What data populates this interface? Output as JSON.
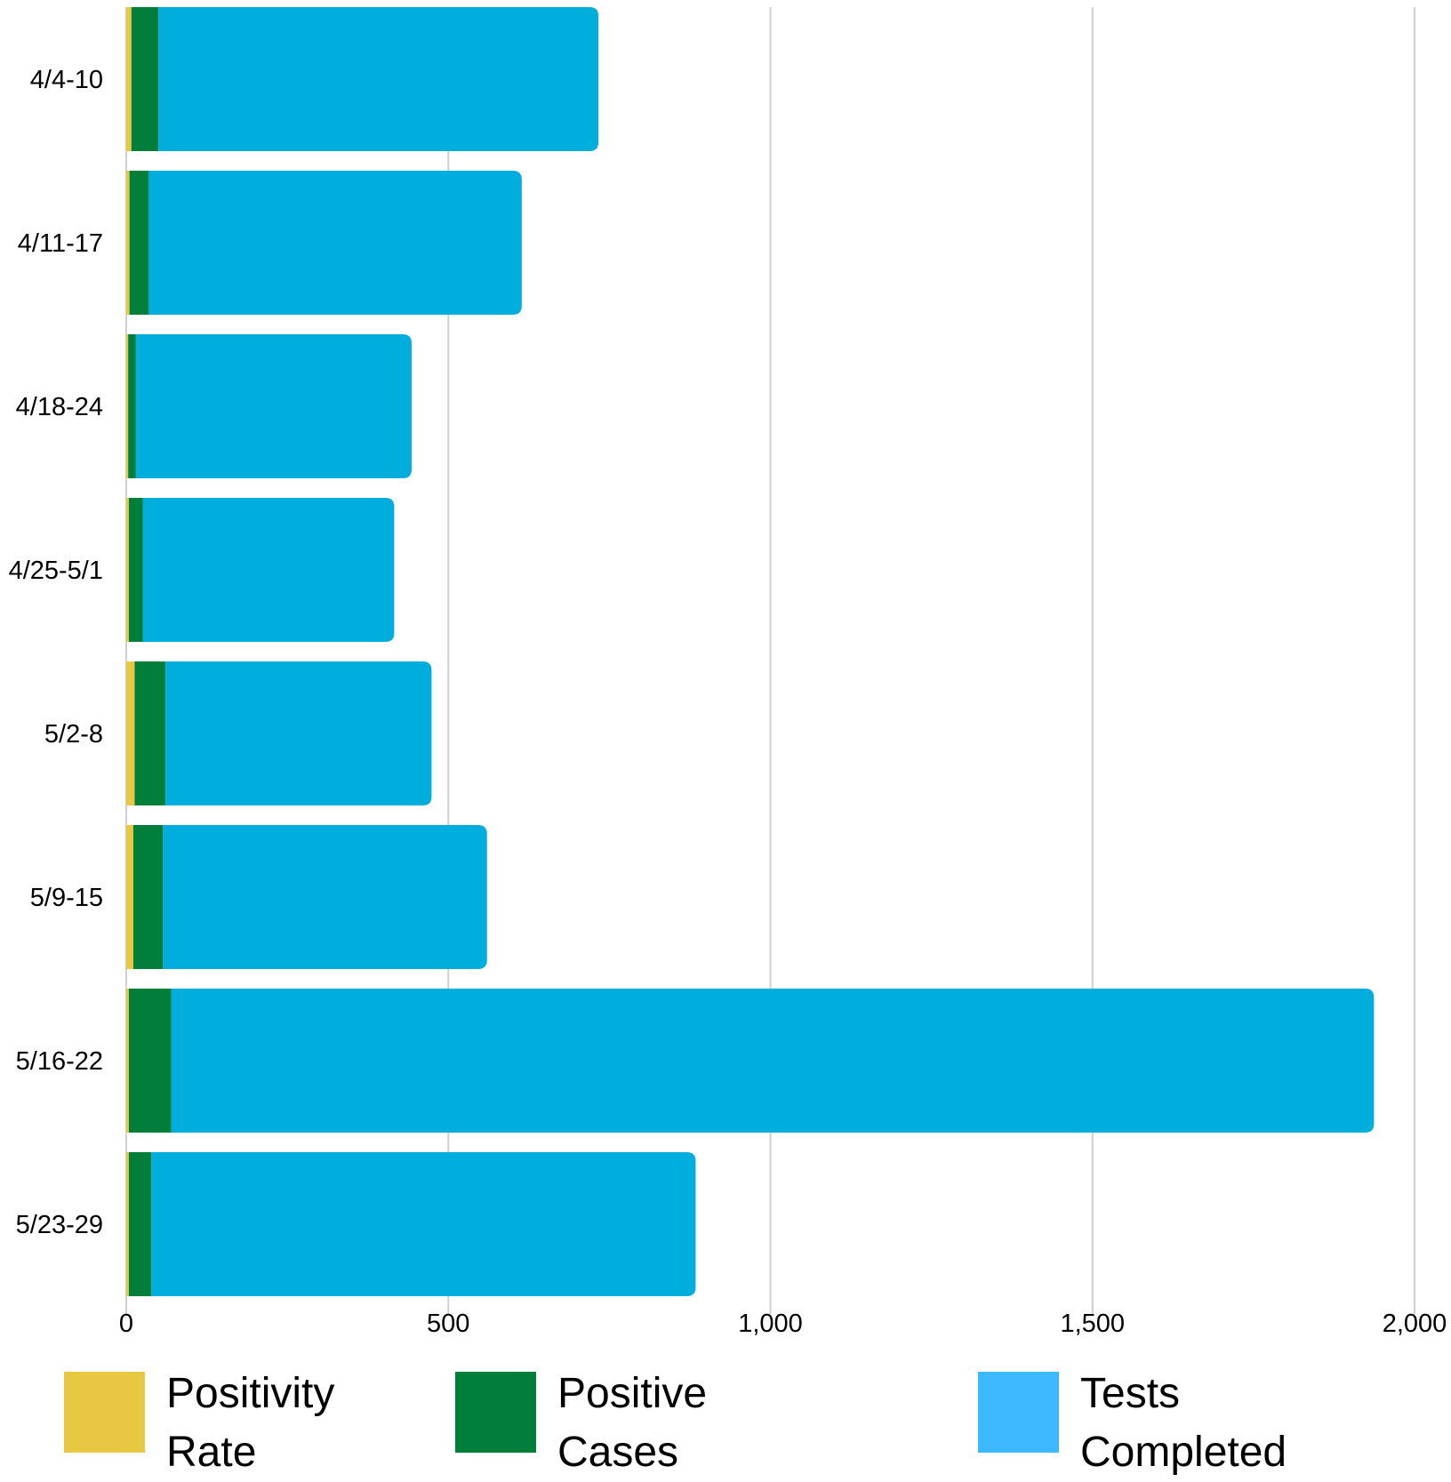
{
  "chart_data": {
    "type": "bar",
    "orientation": "horizontal",
    "stacked": true,
    "categories": [
      "4/4-10",
      "4/11-17",
      "4/18-24",
      "4/25-5/1",
      "5/2-8",
      "5/9-15",
      "5/16-22",
      "5/23-29"
    ],
    "series": [
      {
        "name": "Positivity Rate",
        "color": "#E8C843",
        "values": [
          8,
          5,
          3,
          4,
          13,
          11,
          4,
          4
        ]
      },
      {
        "name": "Positive Cases",
        "color": "#007E3A",
        "values": [
          42,
          30,
          12,
          22,
          48,
          46,
          66,
          35
        ]
      },
      {
        "name": "Tests Completed",
        "color": "#00AEDD",
        "values": [
          683,
          579,
          428,
          390,
          413,
          503,
          1867,
          845
        ]
      }
    ],
    "xlim": [
      0,
      2000
    ],
    "xticks": [
      "0",
      "500",
      "1,000",
      "1,500",
      "2,000"
    ],
    "xtick_values": [
      0,
      500,
      1000,
      1500,
      2000
    ],
    "grid": true,
    "legend_position": "bottom"
  },
  "legend": {
    "items": [
      {
        "label_line1": "Positivity",
        "label_line2": "Rate",
        "color": "#E8C843"
      },
      {
        "label_line1": "Positive",
        "label_line2": "Cases",
        "color": "#007E3A"
      },
      {
        "label_line1": "Tests",
        "label_line2": "Completed",
        "color": "#3BB8FF"
      }
    ]
  }
}
